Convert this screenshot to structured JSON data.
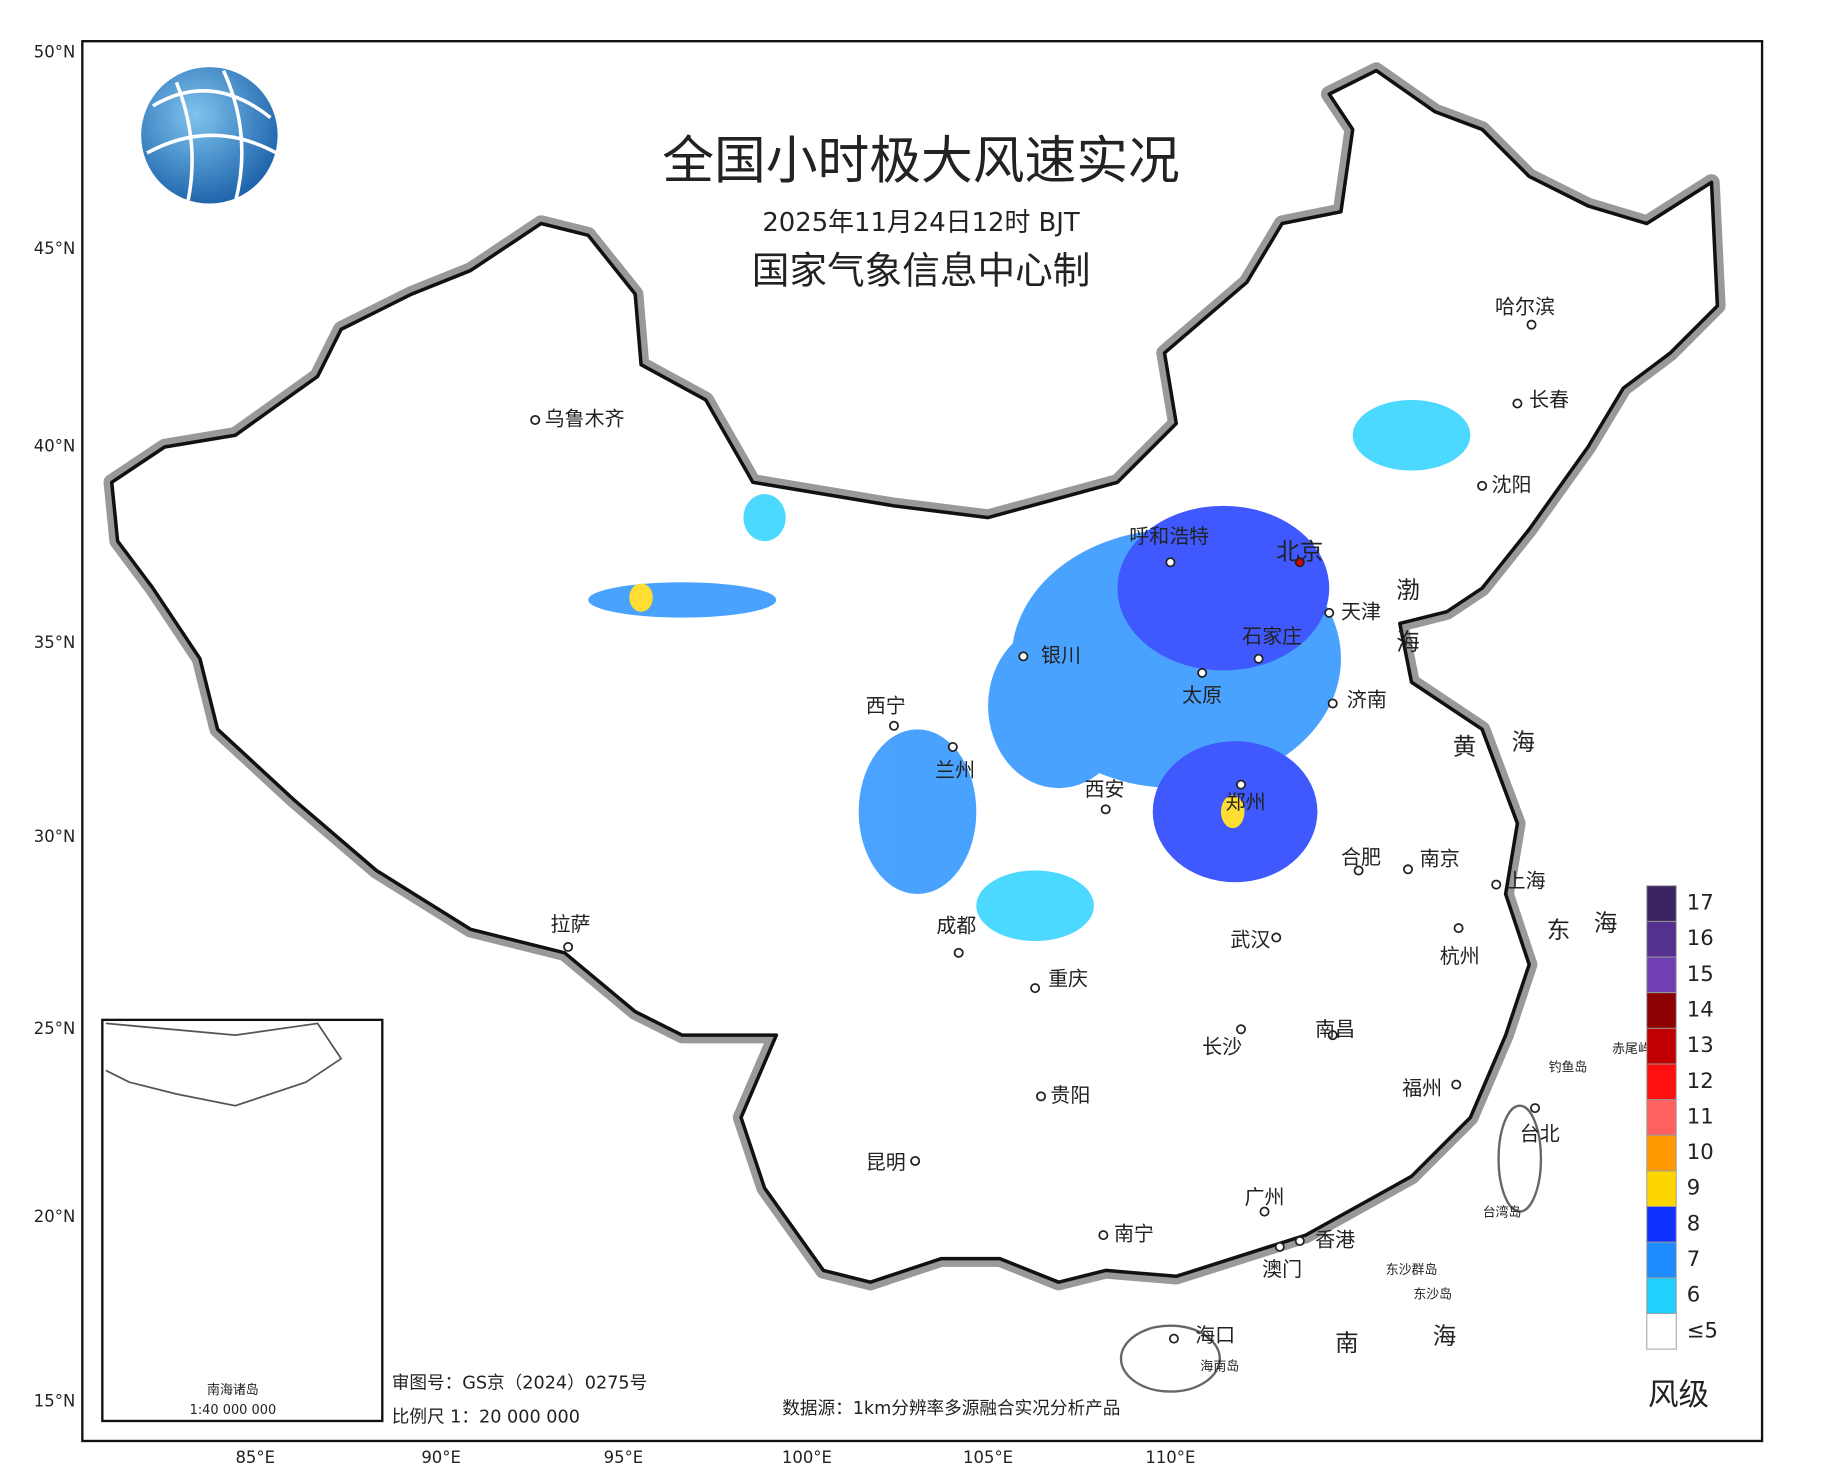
{
  "header": {
    "title": "全国小时极大风速实况",
    "time": "2025年11月24日12时 BJT",
    "maker": "国家气象信息中心制"
  },
  "axes": {
    "lat_labels": [
      "50°N",
      "45°N",
      "40°N",
      "35°N",
      "30°N",
      "25°N",
      "20°N",
      "15°N"
    ],
    "lon_labels": [
      "85°E",
      "90°E",
      "95°E",
      "100°E",
      "105°E",
      "110°E"
    ]
  },
  "cities": [
    {
      "label": "乌鲁木齐"
    },
    {
      "label": "呼和浩特"
    },
    {
      "label": "北京"
    },
    {
      "label": "天津"
    },
    {
      "label": "石家庄"
    },
    {
      "label": "银川"
    },
    {
      "label": "太原"
    },
    {
      "label": "济南"
    },
    {
      "label": "西宁"
    },
    {
      "label": "兰州"
    },
    {
      "label": "西安"
    },
    {
      "label": "郑州"
    },
    {
      "label": "合肥"
    },
    {
      "label": "南京"
    },
    {
      "label": "上海"
    },
    {
      "label": "拉萨"
    },
    {
      "label": "成都"
    },
    {
      "label": "武汉"
    },
    {
      "label": "杭州"
    },
    {
      "label": "重庆"
    },
    {
      "label": "长沙"
    },
    {
      "label": "南昌"
    },
    {
      "label": "福州"
    },
    {
      "label": "贵阳"
    },
    {
      "label": "台北"
    },
    {
      "label": "昆明"
    },
    {
      "label": "广州"
    },
    {
      "label": "南宁"
    },
    {
      "label": "香港"
    },
    {
      "label": "澳门"
    },
    {
      "label": "海口"
    },
    {
      "label": "哈尔滨"
    },
    {
      "label": "长春"
    },
    {
      "label": "沈阳"
    }
  ],
  "water_labels": [
    "渤",
    "海",
    "黄",
    "海",
    "东",
    "海",
    "南",
    "海"
  ],
  "island_labels": [
    "钓鱼岛",
    "赤尾屿",
    "台湾岛",
    "海南岛",
    "东沙群岛",
    "东沙岛"
  ],
  "legend": {
    "title": "风级",
    "levels": [
      {
        "label": "17",
        "color": "#3b2560"
      },
      {
        "label": "16",
        "color": "#55318f"
      },
      {
        "label": "15",
        "color": "#6f3fb3"
      },
      {
        "label": "14",
        "color": "#8b0000"
      },
      {
        "label": "13",
        "color": "#c00000"
      },
      {
        "label": "12",
        "color": "#ff1010"
      },
      {
        "label": "11",
        "color": "#ff6060"
      },
      {
        "label": "10",
        "color": "#ff9a00"
      },
      {
        "label": "9",
        "color": "#ffd500"
      },
      {
        "label": "8",
        "color": "#1030ff"
      },
      {
        "label": "7",
        "color": "#1e8cff"
      },
      {
        "label": "6",
        "color": "#20d0ff"
      },
      {
        "label": "≤5",
        "color": "#ffffff"
      }
    ]
  },
  "footer": {
    "review": "审图号：GS京（2024）0275号",
    "scale": "比例尺 1：20 000 000",
    "source": "数据源：1km分辨率多源融合实况分析产品"
  },
  "inset": {
    "title": "南海诸岛",
    "scale": "1:40 000 000"
  }
}
